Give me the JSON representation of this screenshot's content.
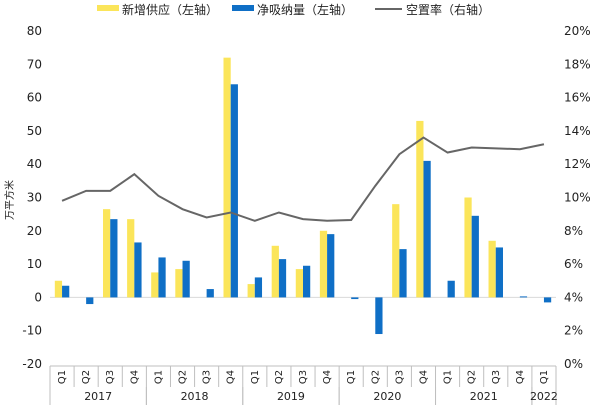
{
  "chart_data": {
    "type": "bar",
    "legend": {
      "position": "top",
      "entries": [
        {
          "name": "新增供应（左轴）",
          "color": "#FBE55A",
          "kind": "bar"
        },
        {
          "name": "净吸纳量（左轴）",
          "color": "#0F6FC6",
          "kind": "bar"
        },
        {
          "name": "空置率（右轴）",
          "color": "#666666",
          "kind": "line"
        }
      ]
    },
    "ylabel": "万平方米",
    "y_left": {
      "lim": [
        -20,
        80
      ],
      "ticks": [
        "-20",
        "-10",
        "0",
        "10",
        "20",
        "30",
        "40",
        "50",
        "60",
        "70",
        "80"
      ]
    },
    "y_right": {
      "lim": [
        0,
        20
      ],
      "ticks": [
        "0%",
        "2%",
        "4%",
        "6%",
        "8%",
        "10%",
        "12%",
        "14%",
        "16%",
        "18%",
        "20%"
      ]
    },
    "categories": [
      "Q1",
      "Q2",
      "Q3",
      "Q4",
      "Q1",
      "Q2",
      "Q3",
      "Q4",
      "Q1",
      "Q2",
      "Q3",
      "Q4",
      "Q1",
      "Q2",
      "Q3",
      "Q4",
      "Q1",
      "Q2",
      "Q3",
      "Q4",
      "Q1"
    ],
    "years": [
      {
        "label": "2017",
        "start": 0,
        "end": 3
      },
      {
        "label": "2018",
        "start": 4,
        "end": 7
      },
      {
        "label": "2019",
        "start": 8,
        "end": 11
      },
      {
        "label": "2020",
        "start": 12,
        "end": 15
      },
      {
        "label": "2021",
        "start": 16,
        "end": 19
      },
      {
        "label": "2022",
        "start": 20,
        "end": 20
      }
    ],
    "series": [
      {
        "name": "新增供应（左轴）",
        "type": "bar",
        "axis": "left",
        "color": "#FBE55A",
        "values": [
          5,
          0,
          26.5,
          23.5,
          7.5,
          8.5,
          0,
          72,
          4,
          15.5,
          8.5,
          20,
          0,
          0,
          28,
          53,
          0,
          30,
          17,
          0,
          0
        ]
      },
      {
        "name": "净吸纳量（左轴）",
        "type": "bar",
        "axis": "left",
        "color": "#0F6FC6",
        "values": [
          3.5,
          -2,
          23.5,
          16.5,
          12,
          11,
          2.5,
          64,
          6,
          11.5,
          9.5,
          19,
          -0.5,
          -11,
          14.5,
          41,
          5,
          24.5,
          15,
          0.3,
          -1.5
        ]
      },
      {
        "name": "空置率（右轴）",
        "type": "line",
        "axis": "right",
        "color": "#666666",
        "values": [
          9.8,
          10.4,
          10.4,
          11.4,
          10.1,
          9.3,
          8.8,
          9.1,
          8.6,
          9.1,
          8.7,
          8.6,
          8.65,
          10.7,
          12.6,
          13.6,
          12.7,
          13.0,
          12.95,
          12.9,
          13.2
        ]
      }
    ],
    "grid": false
  }
}
